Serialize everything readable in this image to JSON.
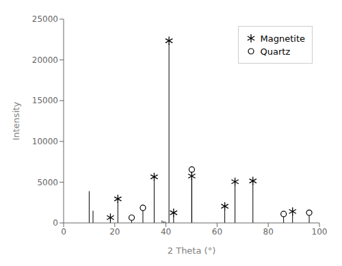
{
  "chart_data": {
    "type": "stem",
    "xlabel": "2 Theta (°)",
    "ylabel": "Intensity",
    "xlim": [
      0,
      100
    ],
    "ylim": [
      0,
      25000
    ],
    "xticks": [
      0,
      20,
      40,
      60,
      80,
      100
    ],
    "yticks": [
      0,
      5000,
      10000,
      15000,
      20000,
      25000
    ],
    "legend": "upper right",
    "series": [
      {
        "x": [
          10.0,
          11.5,
          38.5,
          39.2,
          39.8
        ],
        "values": [
          3900,
          1500,
          300,
          200,
          150
        ],
        "color": "#000000"
      },
      {
        "name": "Magnetite",
        "x": [
          18.3,
          21.2,
          35.4,
          41.2,
          43.0,
          50.1,
          63.0,
          67.0,
          74.0,
          89.5
        ],
        "values": [
          300,
          2600,
          5300,
          22000,
          900,
          5400,
          1700,
          4700,
          4800,
          1050
        ],
        "color": "#000000",
        "marker": "asterisk"
      },
      {
        "name": "Quartz",
        "x": [
          26.6,
          31.0,
          50.1,
          86.0,
          96.0
        ],
        "values": [
          300,
          1500,
          6200,
          750,
          900
        ],
        "color": "#000000",
        "marker": "circle"
      }
    ]
  }
}
